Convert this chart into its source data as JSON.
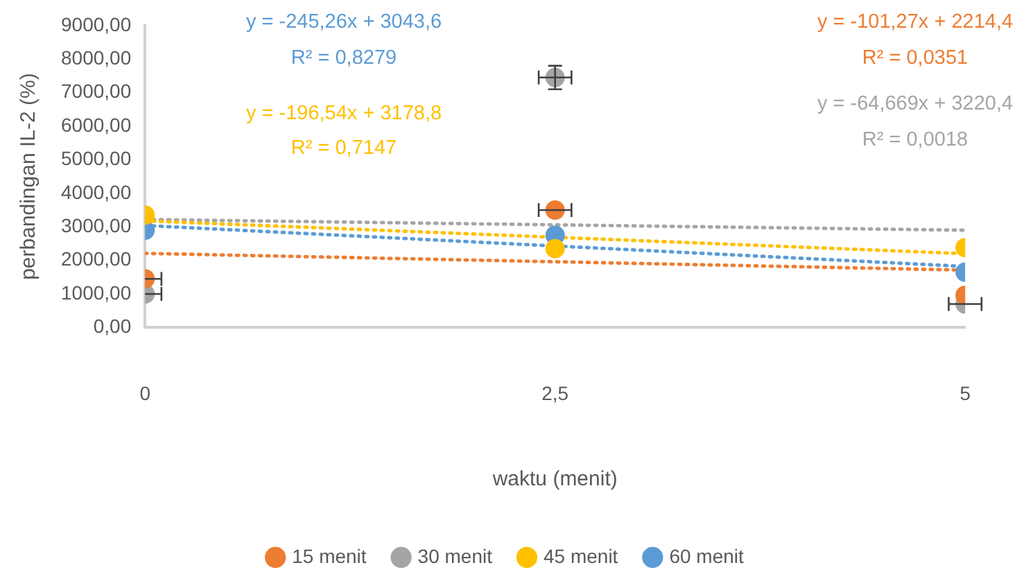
{
  "chart_data": {
    "type": "scatter",
    "xlabel": "waktu (menit)",
    "ylabel": "perbandingan IL-2 (%)",
    "xlim": [
      0,
      5
    ],
    "xticks": [
      0,
      {
        "value": 2.5,
        "label": "2,5"
      },
      5
    ],
    "ylim": [
      0,
      9000
    ],
    "yticks": [
      {
        "value": 0,
        "label": "0,00"
      },
      {
        "value": 1000,
        "label": "1000,00"
      },
      {
        "value": 2000,
        "label": "2000,00"
      },
      {
        "value": 3000,
        "label": "3000,00"
      },
      {
        "value": 4000,
        "label": "4000,00"
      },
      {
        "value": 5000,
        "label": "5000,00"
      },
      {
        "value": 6000,
        "label": "6000,00"
      },
      {
        "value": 7000,
        "label": "7000,00"
      },
      {
        "value": 8000,
        "label": "8000,00"
      },
      {
        "value": 9000,
        "label": "9000,00"
      }
    ],
    "grid": false,
    "legend": "bottom",
    "marker": "circle",
    "series": [
      {
        "name": "15 menit",
        "color": "#ed7d31",
        "x": [
          0,
          2.5,
          5
        ],
        "values": [
          1450,
          3500,
          960
        ],
        "xerrors": [
          0.1,
          0.1,
          null
        ]
      },
      {
        "name": "30 menit",
        "color": "#a5a5a5",
        "x": [
          0,
          2.5,
          5
        ],
        "values": [
          1000,
          7450,
          700
        ],
        "xerrors": [
          0.1,
          0.1,
          0.1
        ],
        "errors": [
          null,
          350,
          null
        ]
      },
      {
        "name": "45 menit",
        "color": "#ffc000",
        "x": [
          0,
          2.5,
          5
        ],
        "values": [
          3350,
          2350,
          2380
        ]
      },
      {
        "name": "60 menit",
        "color": "#5b9bd5",
        "x": [
          0,
          2.5,
          5
        ],
        "values": [
          2900,
          2750,
          1650
        ]
      },
      {
        "type": "line",
        "color": "#5b9bd5",
        "x": [
          0,
          5
        ],
        "values": [
          3040,
          1820
        ],
        "line_style": "dotted",
        "marker": "none"
      },
      {
        "type": "line",
        "color": "#ed7d31",
        "x": [
          0,
          5
        ],
        "values": [
          2210,
          1710
        ],
        "line_style": "dotted",
        "marker": "none"
      },
      {
        "type": "line",
        "color": "#ffc000",
        "x": [
          0,
          5
        ],
        "values": [
          3180,
          2200
        ],
        "line_style": "dotted",
        "marker": "none"
      },
      {
        "type": "line",
        "color": "#a5a5a5",
        "x": [
          0,
          5
        ],
        "values": [
          3220,
          2900
        ],
        "line_style": "dotted",
        "marker": "none"
      }
    ],
    "annotations": [
      "y = -245,26x + 3043,6",
      "R² = 0,8279",
      "y = -101,27x + 2214,4",
      "R² = 0,0351",
      "y = -196,54x + 3178,8",
      "R² = 0,7147",
      "y = -64,669x + 3220,4",
      "R² = 0,0018"
    ]
  }
}
